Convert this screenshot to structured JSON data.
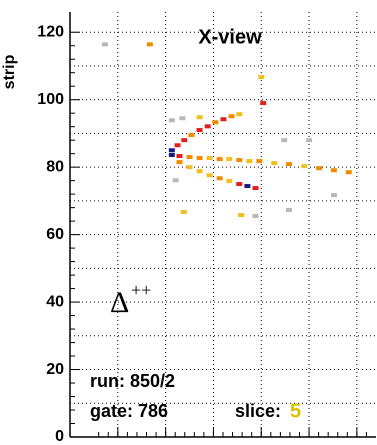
{
  "chart_data": {
    "type": "scatter",
    "title": "X-view",
    "y_label": "strip",
    "x": [
      21.3,
      22.5,
      23.9,
      25.4,
      27.1,
      28.8,
      30.4,
      32.1,
      33.8,
      35.4,
      21.3,
      22.9,
      25.0,
      27.1,
      29.2,
      31.3,
      33.3,
      35.4,
      37.5,
      39.6,
      42.7,
      45.8,
      49.0,
      52.1,
      55.2,
      58.3,
      22.9,
      25.0,
      27.1,
      29.2,
      31.3,
      33.3,
      35.4,
      37.1,
      38.8,
      7.3,
      16.7,
      40.0,
      40.4,
      21.3,
      23.5,
      27.1,
      44.8,
      50.0,
      22.1,
      23.8,
      35.8,
      38.8,
      45.8,
      55.2
    ],
    "values": [
      85.0,
      86.5,
      88.0,
      89.5,
      91.0,
      92.1,
      93.3,
      94.2,
      95.1,
      95.7,
      83.6,
      83.3,
      83.0,
      82.7,
      82.7,
      82.4,
      82.4,
      82.1,
      81.8,
      81.8,
      81.2,
      80.9,
      80.3,
      79.7,
      79.1,
      78.5,
      81.5,
      80.0,
      78.8,
      77.6,
      76.7,
      75.9,
      75.0,
      74.4,
      73.8,
      116.4,
      116.4,
      106.7,
      99.0,
      93.9,
      94.5,
      94.8,
      88.0,
      88.0,
      76.1,
      66.7,
      65.8,
      65.5,
      67.3,
      71.7
    ],
    "colors": [
      "#1a1a80",
      "#e0201a",
      "#e0201a",
      "#f08a00",
      "#e0201a",
      "#e0201a",
      "#f08a00",
      "#e0201a",
      "#f08a00",
      "#f0c020",
      "#1a1a80",
      "#e0201a",
      "#f08a00",
      "#f08a00",
      "#f0c020",
      "#f08a00",
      "#f0c020",
      "#f08a00",
      "#f0c020",
      "#f08a00",
      "#f0c020",
      "#f08a00",
      "#f0c020",
      "#f08a00",
      "#f08a00",
      "#f08a00",
      "#f08a00",
      "#f0c020",
      "#f0c020",
      "#f0c020",
      "#f08a00",
      "#f0c020",
      "#e0201a",
      "#1a1a80",
      "#e0201a",
      "#b8b8b8",
      "#f08a00",
      "#f0c020",
      "#e0201a",
      "#b8b8b8",
      "#b8b8b8",
      "#f0c020",
      "#b8b8b8",
      "#b8b8b8",
      "#b8b8b8",
      "#f0c020",
      "#f0c020",
      "#b8b8b8",
      "#b8b8b8",
      "#b8b8b8"
    ],
    "xlim": [
      0,
      64
    ],
    "xticks": [
      10,
      20,
      30,
      40,
      50,
      60
    ],
    "ylim": [
      0,
      126
    ],
    "yticks": [
      0,
      20,
      40,
      60,
      80,
      100,
      120
    ],
    "grid": true,
    "annotations": {
      "particle": "Δ",
      "particle_charge": "++",
      "run": "run: 850/2",
      "gate": "gate: 786",
      "slice_label": "slice:",
      "slice": "5"
    }
  }
}
